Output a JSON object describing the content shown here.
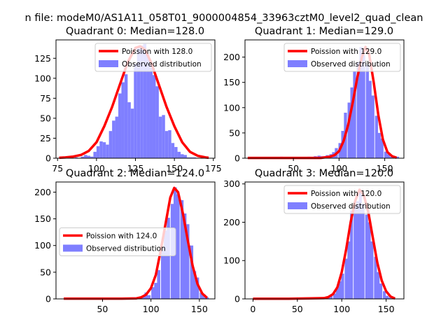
{
  "figure": {
    "suptitle": "n file: modeM0/AS1A11_058T01_9000004854_33963cztM0_level2_quad_clean"
  },
  "colors": {
    "poisson_line": "#ff0000",
    "observed_bars": "#7f7fff",
    "axes": "#000000",
    "background": "#ffffff"
  },
  "chart_data": [
    {
      "type": "bar",
      "title": "Quadrant 0: Median=128.0",
      "median": 128.0,
      "xlim": [
        74,
        176
      ],
      "ylim": [
        0,
        148
      ],
      "xticks": [
        75,
        100,
        125,
        150,
        175
      ],
      "yticks": [
        0,
        25,
        50,
        75,
        100,
        125
      ],
      "legend_loc": "upper right",
      "legend": [
        "Poission with 128.0",
        "Observed distribution"
      ],
      "bin_width": 2,
      "bins_x": [
        79,
        81,
        83,
        85,
        87,
        89,
        91,
        93,
        95,
        97,
        99,
        101,
        103,
        105,
        107,
        109,
        111,
        113,
        115,
        117,
        119,
        121,
        123,
        125,
        127,
        129,
        131,
        133,
        135,
        137,
        139,
        141,
        143,
        145,
        147,
        149,
        151,
        153,
        155,
        157,
        159,
        161,
        163,
        165,
        167,
        169,
        171
      ],
      "bins_y": [
        1,
        0,
        1,
        0,
        1,
        0,
        2,
        4,
        3,
        2,
        8,
        15,
        21,
        20,
        17,
        34,
        47,
        52,
        81,
        95,
        105,
        70,
        62,
        118,
        140,
        141,
        143,
        130,
        117,
        104,
        90,
        52,
        54,
        34,
        35,
        19,
        14,
        8,
        5,
        4,
        1,
        1,
        1,
        0,
        0,
        0,
        0
      ],
      "poisson_x": [
        76,
        80,
        85,
        90,
        95,
        100,
        105,
        110,
        115,
        120,
        125,
        128,
        131,
        135,
        140,
        145,
        150,
        155,
        160,
        165,
        170,
        172
      ],
      "poisson_y": [
        0.5,
        1,
        2,
        4,
        9,
        20,
        40,
        64,
        92,
        120,
        138,
        140,
        136,
        120,
        92,
        64,
        40,
        20,
        8,
        3,
        1,
        0.5
      ]
    },
    {
      "type": "bar",
      "title": "Quadrant 1: Median=129.0",
      "median": 129.0,
      "xlim": [
        -3,
        171
      ],
      "ylim": [
        0,
        234
      ],
      "xticks": [
        50,
        100,
        150
      ],
      "yticks": [
        0,
        50,
        100,
        150,
        200
      ],
      "legend_loc": "upper right",
      "legend": [
        "Poission with 129.0",
        "Observed distribution"
      ],
      "bin_width": 3.3,
      "bins_x": [
        7,
        17,
        27,
        37,
        47,
        57,
        67,
        74,
        78,
        81,
        84,
        87,
        91,
        94,
        97,
        101,
        104,
        107,
        111,
        114,
        117,
        121,
        124,
        127,
        131,
        134,
        137,
        141,
        144,
        147,
        151,
        154,
        157,
        161,
        164
      ],
      "bins_y": [
        2,
        2,
        2,
        3,
        2,
        2,
        3,
        4,
        5,
        4,
        4,
        6,
        8,
        12,
        20,
        30,
        54,
        90,
        110,
        140,
        171,
        190,
        220,
        204,
        185,
        153,
        124,
        84,
        50,
        39,
        13,
        8,
        3,
        3,
        3
      ],
      "poisson_x": [
        0,
        20,
        40,
        60,
        80,
        90,
        95,
        100,
        105,
        110,
        115,
        120,
        125,
        129,
        133,
        138,
        143,
        148,
        153,
        158,
        163
      ],
      "poisson_y": [
        0.5,
        0.5,
        0.5,
        0.5,
        0.5,
        3,
        6,
        14,
        34,
        66,
        110,
        160,
        200,
        220,
        205,
        150,
        85,
        37,
        12,
        4,
        1
      ]
    },
    {
      "type": "bar",
      "title": "Quadrant 2: Median=124.0",
      "median": 124.0,
      "xlim": [
        2,
        166
      ],
      "ylim": [
        0,
        219
      ],
      "xticks": [
        50,
        100,
        150
      ],
      "yticks": [
        0,
        50,
        100,
        150,
        200
      ],
      "legend_loc": "center left",
      "legend": [
        "Poission with 124.0",
        "Observed distribution"
      ],
      "bin_width": 3.3,
      "bins_x": [
        12,
        22,
        32,
        42,
        52,
        62,
        72,
        78,
        82,
        85,
        88,
        92,
        95,
        98,
        102,
        105,
        108,
        112,
        115,
        118,
        122,
        125,
        128,
        132,
        135,
        138,
        142,
        145,
        148,
        152,
        155,
        158
      ],
      "bins_y": [
        1,
        1,
        1,
        1,
        2,
        1,
        2,
        2,
        3,
        3,
        3,
        5,
        12,
        7,
        22,
        30,
        54,
        97,
        128,
        152,
        178,
        209,
        196,
        185,
        160,
        140,
        100,
        52,
        40,
        12,
        8,
        3
      ],
      "poisson_x": [
        10,
        40,
        70,
        85,
        90,
        95,
        100,
        105,
        110,
        115,
        120,
        124,
        128,
        133,
        138,
        143,
        148,
        153,
        158
      ],
      "poisson_y": [
        0.5,
        0.5,
        0.5,
        1,
        3,
        8,
        20,
        45,
        90,
        140,
        190,
        208,
        200,
        160,
        110,
        62,
        28,
        10,
        2
      ]
    },
    {
      "type": "bar",
      "title": "Quadrant 3: Median=120.0",
      "median": 120.0,
      "xlim": [
        -9,
        170
      ],
      "ylim": [
        0,
        305
      ],
      "xticks": [
        0,
        50,
        100,
        150
      ],
      "yticks": [
        0,
        100,
        200,
        300
      ],
      "legend_loc": "upper right",
      "legend": [
        "Poission with 120.0",
        "Observed distribution"
      ],
      "bin_width": 3.3,
      "bins_x": [
        5,
        20,
        35,
        50,
        65,
        78,
        85,
        88,
        92,
        95,
        98,
        101,
        105,
        108,
        111,
        115,
        118,
        121,
        124,
        128,
        131,
        134,
        138,
        141,
        144,
        148,
        151,
        154,
        158
      ],
      "bins_y": [
        1,
        1,
        1,
        2,
        1,
        2,
        4,
        8,
        14,
        28,
        46,
        66,
        105,
        150,
        230,
        245,
        255,
        285,
        248,
        220,
        200,
        150,
        110,
        70,
        40,
        20,
        8,
        4,
        2
      ],
      "poisson_x": [
        0,
        40,
        80,
        85,
        90,
        95,
        100,
        105,
        110,
        115,
        120,
        125,
        130,
        135,
        140,
        145,
        150,
        155,
        160
      ],
      "poisson_y": [
        0.5,
        0.5,
        2,
        5,
        12,
        30,
        70,
        130,
        200,
        255,
        285,
        270,
        225,
        160,
        95,
        48,
        20,
        6,
        1
      ]
    }
  ]
}
